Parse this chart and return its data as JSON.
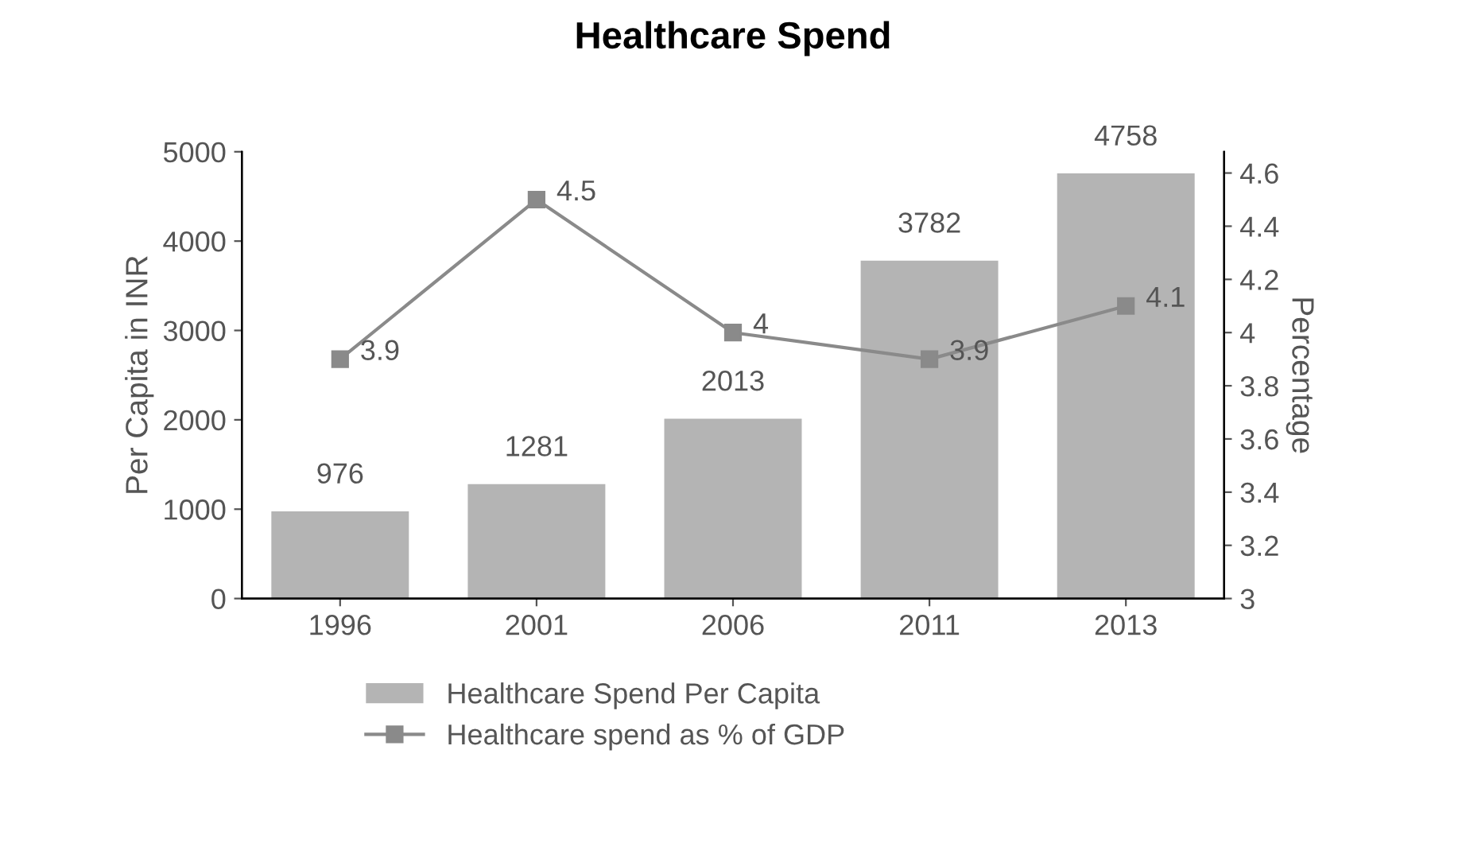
{
  "chart_data": {
    "type": "bar",
    "title": "Healthcare Spend",
    "ylabel": "Per Capita in INR",
    "y2label": "Percentage",
    "categories": [
      "1996",
      "2001",
      "2006",
      "2011",
      "2013"
    ],
    "series": [
      {
        "name": "Healthcare Spend Per Capita",
        "color": "#b4b4b4",
        "values": [
          976,
          1281,
          2013,
          3782,
          4758
        ]
      },
      {
        "name": "Healthcare spend as % of GDP",
        "type": "line",
        "axis": "y2",
        "color": "#8a8a8a",
        "marker": "square",
        "values": [
          3.9,
          4.5,
          4,
          3.9,
          4.1
        ]
      }
    ],
    "ylim": [
      0,
      5000
    ],
    "yticks": [
      0,
      1000,
      2000,
      3000,
      4000,
      5000
    ],
    "y2lim": [
      3,
      4.68
    ],
    "y2ticks": [
      3,
      3.2,
      3.4,
      3.6,
      3.8,
      4,
      4.2,
      4.4,
      4.6
    ],
    "data_labels": true,
    "legend": "bottom",
    "grid": false
  }
}
